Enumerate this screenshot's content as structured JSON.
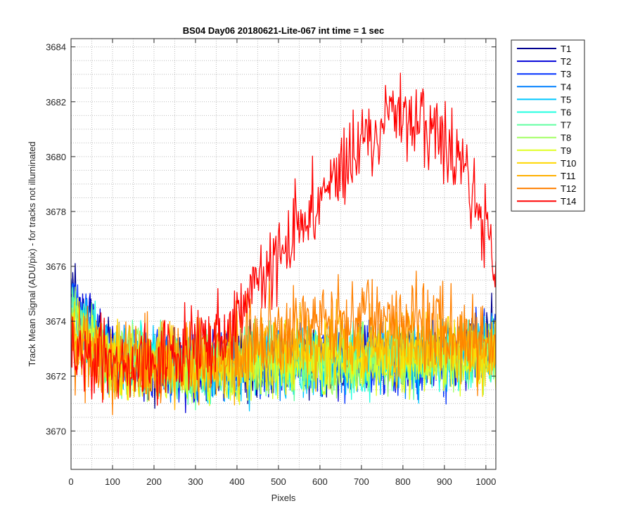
{
  "chart_data": {
    "type": "line",
    "title": "BS04 Day06 20180621-Lite-067 int time = 1 sec",
    "xlabel": "Pixels",
    "ylabel": "Track Mean Signal (ADU/pix) - for tracks not illuminated",
    "xlim": [
      0,
      1024
    ],
    "ylim": [
      3668.6,
      3684.3
    ],
    "x_ticks": [
      0,
      100,
      200,
      300,
      400,
      500,
      600,
      700,
      800,
      900,
      1000
    ],
    "y_ticks": [
      3670,
      3672,
      3674,
      3676,
      3678,
      3680,
      3682,
      3684
    ],
    "grid": "major and minor dotted",
    "legend": {
      "placement": "outside-right-top"
    },
    "series": [
      {
        "name": "T1",
        "color": "#00008f",
        "trend": {
          "x": [
            0,
            20,
            100,
            300,
            500,
            700,
            900,
            1024
          ],
          "y": [
            3675.5,
            3674.5,
            3672.6,
            3672.3,
            3672.5,
            3672.6,
            3672.7,
            3673.5
          ]
        },
        "noise": 1.2,
        "seed": 1
      },
      {
        "name": "T2",
        "color": "#0000d8",
        "trend": {
          "x": [
            0,
            20,
            100,
            300,
            500,
            700,
            900,
            1024
          ],
          "y": [
            3675.2,
            3674.3,
            3672.6,
            3672.3,
            3672.5,
            3672.6,
            3672.7,
            3673.4
          ]
        },
        "noise": 1.2,
        "seed": 2
      },
      {
        "name": "T3",
        "color": "#0030ff",
        "trend": {
          "x": [
            0,
            20,
            100,
            300,
            500,
            700,
            900,
            1024
          ],
          "y": [
            3675.0,
            3674.1,
            3672.6,
            3672.3,
            3672.5,
            3672.6,
            3672.7,
            3673.3
          ]
        },
        "noise": 1.2,
        "seed": 3
      },
      {
        "name": "T4",
        "color": "#0080ff",
        "trend": {
          "x": [
            0,
            20,
            100,
            300,
            500,
            700,
            900,
            1024
          ],
          "y": [
            3674.8,
            3674.0,
            3672.6,
            3672.3,
            3672.5,
            3672.6,
            3672.7,
            3673.2
          ]
        },
        "noise": 1.2,
        "seed": 4
      },
      {
        "name": "T5",
        "color": "#00c8ff",
        "trend": {
          "x": [
            0,
            20,
            100,
            300,
            500,
            700,
            900,
            1024
          ],
          "y": [
            3674.6,
            3673.9,
            3672.6,
            3672.3,
            3672.5,
            3672.6,
            3672.7,
            3673.1
          ]
        },
        "noise": 1.2,
        "seed": 5
      },
      {
        "name": "T6",
        "color": "#20ffe0",
        "trend": {
          "x": [
            0,
            20,
            100,
            300,
            500,
            700,
            900,
            1024
          ],
          "y": [
            3674.5,
            3673.8,
            3672.6,
            3672.3,
            3672.5,
            3672.6,
            3672.7,
            3673.0
          ]
        },
        "noise": 1.2,
        "seed": 6
      },
      {
        "name": "T7",
        "color": "#60ffa0",
        "trend": {
          "x": [
            0,
            20,
            100,
            300,
            500,
            700,
            900,
            1024
          ],
          "y": [
            3674.4,
            3673.7,
            3672.6,
            3672.3,
            3672.5,
            3672.6,
            3672.7,
            3673.0
          ]
        },
        "noise": 1.2,
        "seed": 7
      },
      {
        "name": "T8",
        "color": "#a0ff60",
        "trend": {
          "x": [
            0,
            20,
            100,
            300,
            500,
            700,
            900,
            1024
          ],
          "y": [
            3674.2,
            3673.6,
            3672.6,
            3672.3,
            3672.5,
            3672.6,
            3672.7,
            3672.9
          ]
        },
        "noise": 1.2,
        "seed": 8
      },
      {
        "name": "T9",
        "color": "#e0ff20",
        "trend": {
          "x": [
            0,
            20,
            100,
            300,
            500,
            700,
            900,
            1024
          ],
          "y": [
            3674.0,
            3673.4,
            3672.5,
            3672.2,
            3672.4,
            3672.4,
            3672.5,
            3672.7
          ]
        },
        "noise": 1.2,
        "seed": 9
      },
      {
        "name": "T10",
        "color": "#ffd700",
        "trend": {
          "x": [
            0,
            20,
            100,
            300,
            500,
            700,
            900,
            1024
          ],
          "y": [
            3673.9,
            3673.3,
            3672.5,
            3672.3,
            3672.7,
            3672.9,
            3673.0,
            3672.7
          ]
        },
        "noise": 1.2,
        "seed": 10
      },
      {
        "name": "T11",
        "color": "#ffb000",
        "trend": {
          "x": [
            0,
            20,
            100,
            300,
            500,
            700,
            900,
            1024
          ],
          "y": [
            3673.8,
            3673.2,
            3672.5,
            3672.4,
            3673.1,
            3673.4,
            3673.3,
            3672.8
          ]
        },
        "noise": 1.3,
        "seed": 11
      },
      {
        "name": "T12",
        "color": "#ff8000",
        "trend": {
          "x": [
            0,
            20,
            100,
            300,
            450,
            550,
            700,
            800,
            900,
            1024
          ],
          "y": [
            3673.6,
            3673.0,
            3672.5,
            3672.5,
            3673.3,
            3673.9,
            3674.2,
            3674.1,
            3673.8,
            3673.0
          ]
        },
        "noise": 1.5,
        "seed": 12
      },
      {
        "name": "T14",
        "color": "#ff0000",
        "trend": {
          "x": [
            0,
            30,
            100,
            300,
            380,
            450,
            550,
            650,
            750,
            800,
            850,
            900,
            950,
            1000,
            1024
          ],
          "y": [
            3673.3,
            3672.6,
            3672.4,
            3672.8,
            3673.8,
            3675.4,
            3677.5,
            3679.5,
            3681.2,
            3681.6,
            3681.3,
            3680.3,
            3679.2,
            3677.3,
            3675.8
          ]
        },
        "noise": 1.5,
        "seed": 14
      }
    ]
  }
}
